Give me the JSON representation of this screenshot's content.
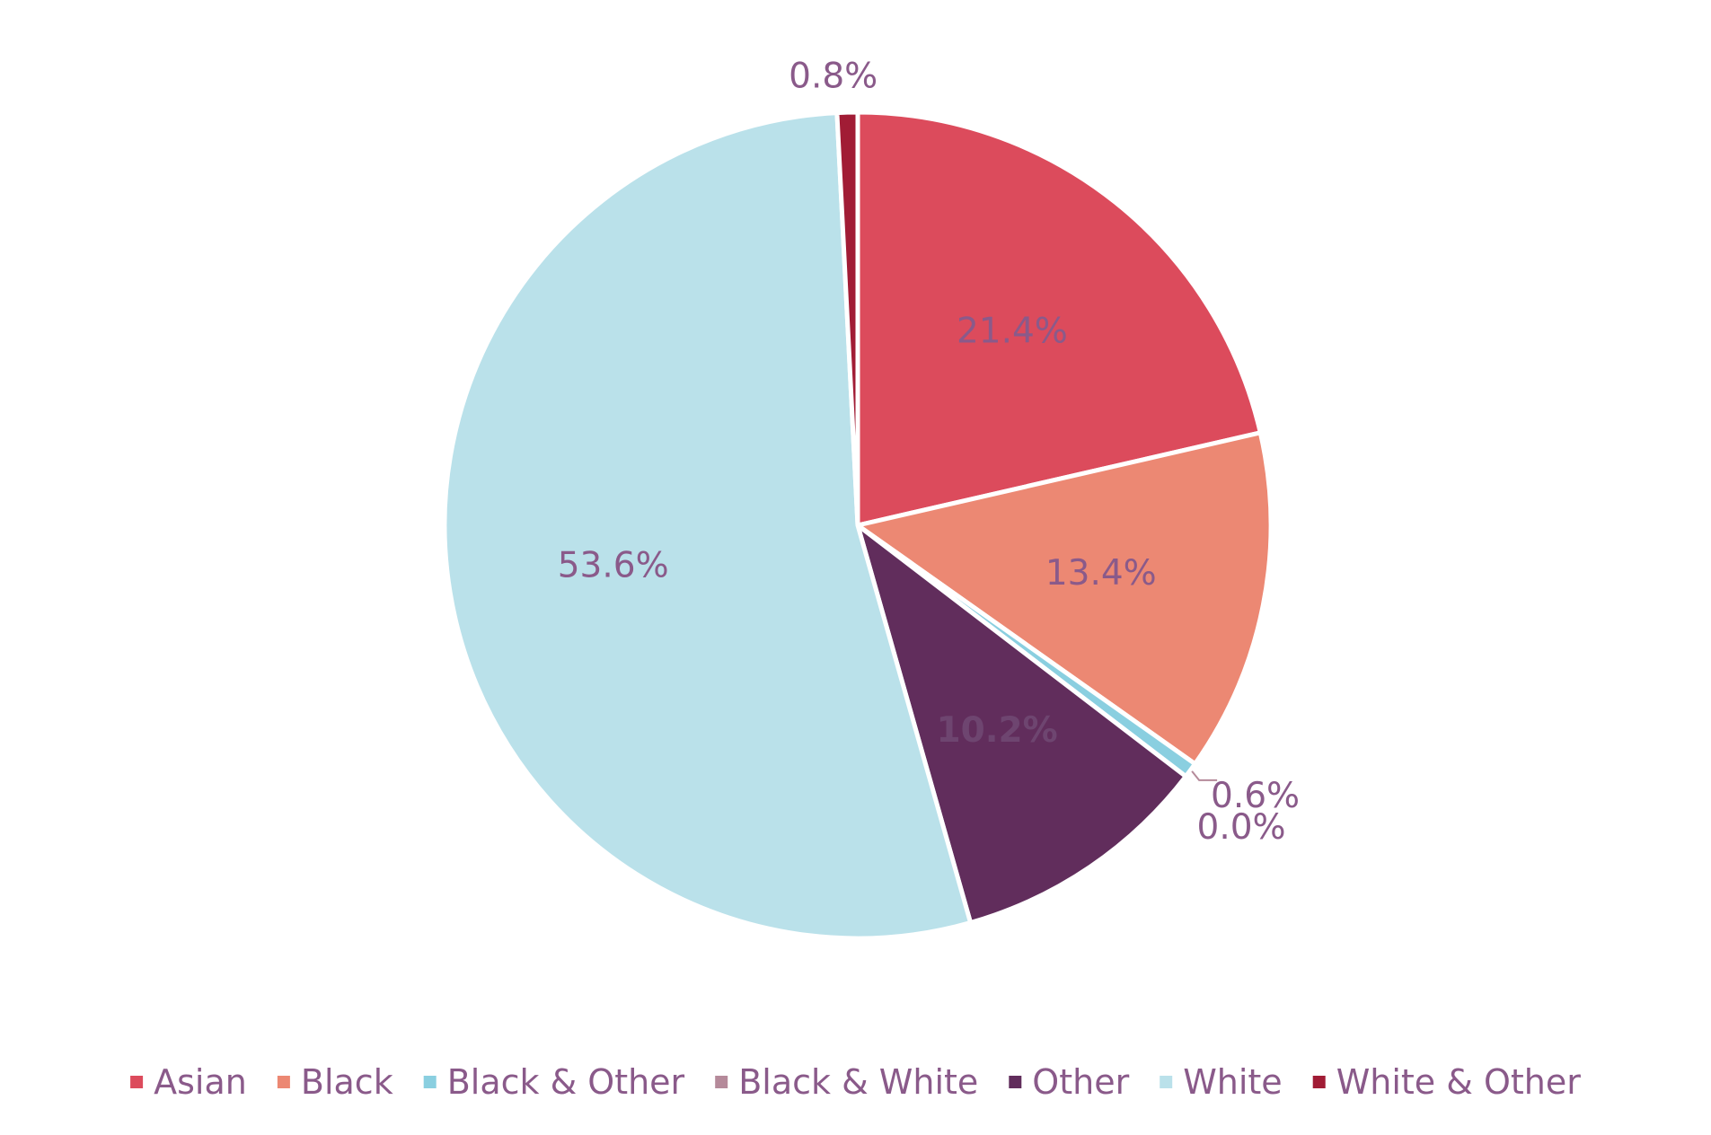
{
  "chart_data": {
    "type": "pie",
    "slices": [
      {
        "name": "Asian",
        "value": 21.4,
        "label": "21.4%",
        "color": "#dc4b5c"
      },
      {
        "name": "Black",
        "value": 13.4,
        "label": "13.4%",
        "color": "#ec8873"
      },
      {
        "name": "Black & Other",
        "value": 0.6,
        "label": "0.6%",
        "color": "#8acfe0"
      },
      {
        "name": "Black & White",
        "value": 0.0,
        "label": "0.0%",
        "color": "#b58a9a"
      },
      {
        "name": "Other",
        "value": 10.2,
        "label": "10.2%",
        "color": "#612d5c"
      },
      {
        "name": "White",
        "value": 53.6,
        "label": "53.6%",
        "color": "#bae1ea"
      },
      {
        "name": "White & Other",
        "value": 0.8,
        "label": "0.8%",
        "color": "#a11c35"
      }
    ],
    "legend": {
      "position": "bottom",
      "items": [
        "Asian",
        "Black",
        "Black & Other",
        "Black & White",
        "Other",
        "White",
        "White & Other"
      ]
    },
    "text_color": "#8a5a8a"
  }
}
